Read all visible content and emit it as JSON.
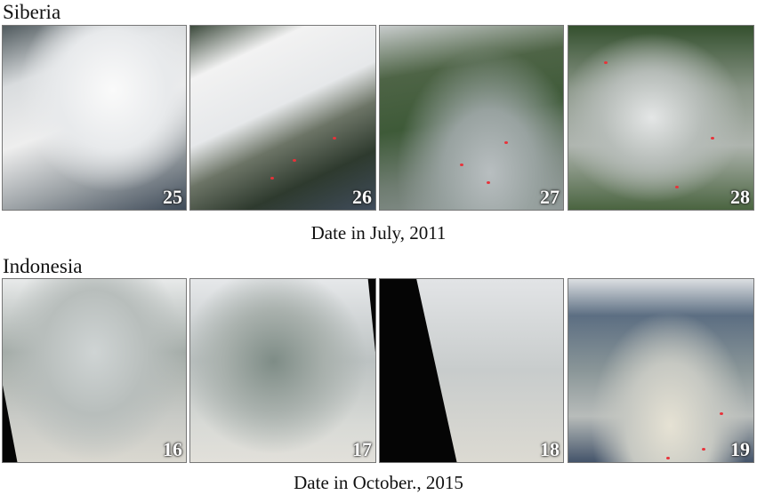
{
  "sections": [
    {
      "title": "Siberia",
      "panels": [
        "25",
        "26",
        "27",
        "28"
      ],
      "caption": "Date in July, 2011"
    },
    {
      "title": "Indonesia",
      "panels": [
        "16",
        "17",
        "18",
        "19"
      ],
      "caption": "Date in October., 2015"
    }
  ]
}
